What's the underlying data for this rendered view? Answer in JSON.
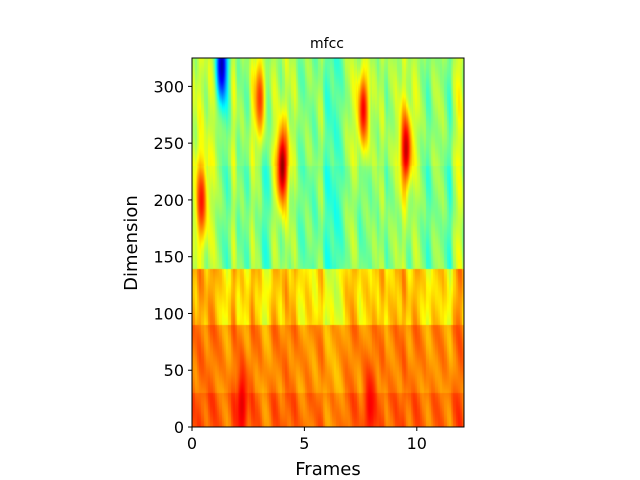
{
  "chart_data": {
    "type": "heatmap",
    "title": "mfcc",
    "xlabel": "Frames",
    "ylabel": "Dimension",
    "xlim": [
      0,
      12.1
    ],
    "ylim": [
      0,
      325
    ],
    "xticks": [
      0,
      5,
      10
    ],
    "yticks": [
      0,
      50,
      100,
      150,
      200,
      250,
      300
    ],
    "colormap": "jet",
    "grid": false,
    "legend": "none",
    "rows": 325,
    "cols": 121,
    "bands": [
      {
        "dim_range": [
          0,
          30
        ],
        "level": 0.77
      },
      {
        "dim_range": [
          30,
          90
        ],
        "level": 0.74
      },
      {
        "dim_range": [
          90,
          140
        ],
        "level": 0.66
      },
      {
        "dim_range": [
          140,
          230
        ],
        "level": 0.5
      },
      {
        "dim_range": [
          230,
          325
        ],
        "level": 0.52
      }
    ],
    "hotspots": [
      {
        "frame": 4.0,
        "dim": 230,
        "level": 0.98
      },
      {
        "frame": 9.5,
        "dim": 245,
        "level": 0.93
      },
      {
        "frame": 2.2,
        "dim": 20,
        "level": 0.9
      },
      {
        "frame": 7.9,
        "dim": 20,
        "level": 0.88
      },
      {
        "frame": 0.4,
        "dim": 200,
        "level": 0.86
      },
      {
        "frame": 1.3,
        "dim": 320,
        "level": 0.05
      },
      {
        "frame": 3.0,
        "dim": 290,
        "level": 0.82
      },
      {
        "frame": 7.6,
        "dim": 280,
        "level": 0.88
      }
    ]
  }
}
